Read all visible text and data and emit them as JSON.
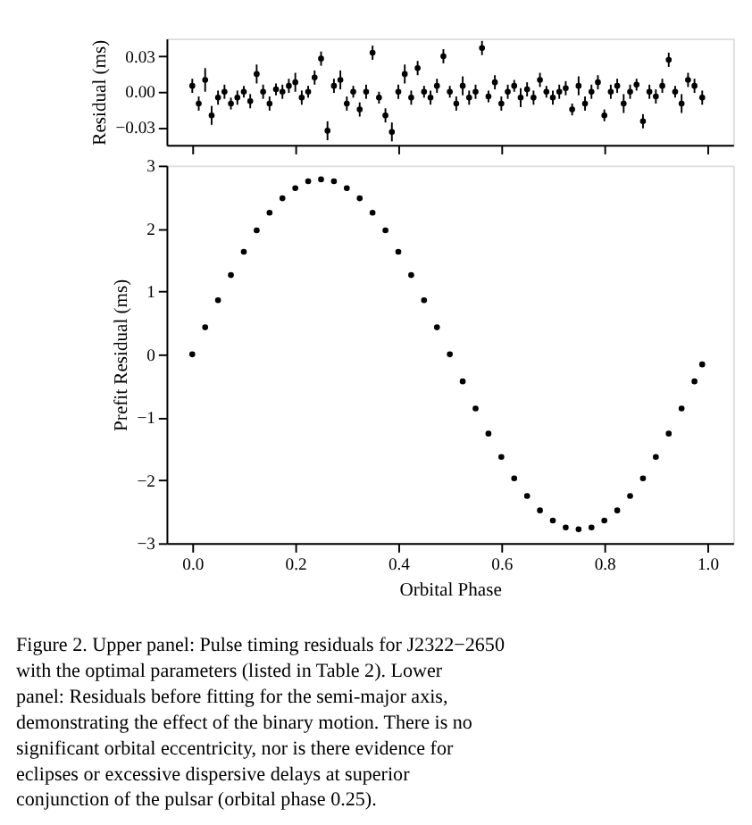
{
  "chart_data": [
    {
      "type": "scatter",
      "ylabel": "Residual (ms)",
      "xlim": [
        -0.05,
        1.05
      ],
      "xticks": [
        {
          "value": 0,
          "label": null
        },
        {
          "value": 0.2,
          "label": null
        },
        {
          "value": 0.4,
          "label": null
        },
        {
          "value": 0.6,
          "label": null
        },
        {
          "value": 0.8,
          "label": null
        },
        {
          "value": 1,
          "label": null
        }
      ],
      "ylim": [
        -0.045,
        0.045
      ],
      "yticks": [
        {
          "value": -0.03,
          "label": "−0.03"
        },
        {
          "value": 0,
          "label": "0.00"
        },
        0.03
      ],
      "tick_labels": "y",
      "grid": false,
      "marker": "circle",
      "series": [
        {
          "color": "#000000",
          "x": [
            0.0,
            0.0125,
            0.025,
            0.0375,
            0.05,
            0.0625,
            0.075,
            0.0875,
            0.1,
            0.1125,
            0.125,
            0.1375,
            0.15,
            0.1625,
            0.175,
            0.1875,
            0.2,
            0.2125,
            0.225,
            0.2375,
            0.25,
            0.2625,
            0.275,
            0.2875,
            0.3,
            0.3125,
            0.325,
            0.3375,
            0.35,
            0.3625,
            0.375,
            0.3875,
            0.4,
            0.4125,
            0.425,
            0.4375,
            0.45,
            0.4625,
            0.475,
            0.4875,
            0.5,
            0.5125,
            0.525,
            0.5375,
            0.55,
            0.5625,
            0.575,
            0.5875,
            0.6,
            0.6125,
            0.625,
            0.6375,
            0.65,
            0.6625,
            0.675,
            0.6875,
            0.7,
            0.7125,
            0.725,
            0.7375,
            0.75,
            0.7625,
            0.775,
            0.7875,
            0.8,
            0.8125,
            0.825,
            0.8375,
            0.85,
            0.8625,
            0.875,
            0.8875,
            0.9,
            0.9125,
            0.925,
            0.9375,
            0.95,
            0.9625,
            0.975,
            0.99
          ],
          "values": [
            0.005,
            -0.01,
            0.01,
            -0.02,
            -0.005,
            0.0,
            -0.01,
            -0.005,
            0.0,
            -0.008,
            0.015,
            0.0,
            -0.01,
            0.002,
            0.0,
            0.005,
            0.008,
            -0.005,
            0.0,
            0.012,
            0.028,
            -0.033,
            0.005,
            0.01,
            -0.01,
            0.0,
            -0.015,
            0.0,
            0.033,
            -0.005,
            -0.02,
            -0.034,
            0.0,
            0.015,
            -0.005,
            0.02,
            0.0,
            -0.005,
            0.005,
            0.03,
            0.0,
            -0.01,
            0.005,
            -0.005,
            0.0,
            0.037,
            -0.004,
            0.008,
            -0.01,
            0.0,
            0.005,
            -0.005,
            0.002,
            -0.005,
            0.01,
            0.0,
            -0.005,
            0.0,
            0.003,
            -0.015,
            0.005,
            -0.01,
            0.0,
            0.008,
            -0.02,
            0.0,
            0.005,
            -0.01,
            0.0,
            0.006,
            -0.025,
            0.0,
            -0.004,
            0.005,
            0.027,
            0.0,
            -0.01,
            0.01,
            0.005,
            -0.005
          ],
          "errors": [
            0.006,
            0.006,
            0.01,
            0.008,
            0.006,
            0.006,
            0.005,
            0.006,
            0.005,
            0.006,
            0.008,
            0.006,
            0.006,
            0.005,
            0.006,
            0.006,
            0.008,
            0.006,
            0.005,
            0.006,
            0.006,
            0.008,
            0.006,
            0.008,
            0.006,
            0.005,
            0.006,
            0.006,
            0.006,
            0.005,
            0.006,
            0.008,
            0.006,
            0.008,
            0.006,
            0.006,
            0.005,
            0.006,
            0.006,
            0.006,
            0.005,
            0.006,
            0.008,
            0.006,
            0.006,
            0.006,
            0.005,
            0.006,
            0.006,
            0.006,
            0.005,
            0.008,
            0.006,
            0.006,
            0.006,
            0.005,
            0.006,
            0.006,
            0.006,
            0.005,
            0.008,
            0.006,
            0.006,
            0.006,
            0.005,
            0.006,
            0.006,
            0.008,
            0.006,
            0.005,
            0.006,
            0.006,
            0.006,
            0.006,
            0.006,
            0.005,
            0.008,
            0.006,
            0.006,
            0.006
          ]
        }
      ]
    },
    {
      "type": "scatter",
      "xlabel": "Orbital Phase",
      "ylabel": "Prefit Residual (ms)",
      "xlim": [
        -0.05,
        1.05
      ],
      "xticks": [
        {
          "value": 0,
          "label": "0.0"
        },
        0.2,
        0.4,
        0.6,
        0.8,
        {
          "value": 1,
          "label": "1.0"
        }
      ],
      "ylim": [
        -3,
        3
      ],
      "yticks": [
        -3,
        -2,
        -1,
        0,
        1,
        2,
        3
      ],
      "grid": false,
      "marker": "circle",
      "annotations": [
        "Figure 2. Upper panel: Pulse timing residuals for J2322−2650 with the optimal parameters (listed in Table 2). Lower panel: Residuals before fitting for the semi-major axis, demonstrating the effect of the binary motion. There is no significant orbital eccentricity, nor is there evidence for eclipses or excessive dispersive delays at superior conjunction of the pulsar (orbital phase 0.25)."
      ],
      "series": [
        {
          "color": "#000000",
          "x": [
            0.0,
            0.025,
            0.05,
            0.075,
            0.1,
            0.125,
            0.15,
            0.175,
            0.2,
            0.225,
            0.25,
            0.275,
            0.3,
            0.325,
            0.35,
            0.375,
            0.4,
            0.425,
            0.45,
            0.475,
            0.5,
            0.525,
            0.55,
            0.575,
            0.6,
            0.625,
            0.65,
            0.675,
            0.7,
            0.725,
            0.75,
            0.775,
            0.8,
            0.825,
            0.85,
            0.875,
            0.9,
            0.925,
            0.95,
            0.975,
            0.99
          ],
          "values": [
            0.0,
            0.43,
            0.86,
            1.26,
            1.63,
            1.97,
            2.25,
            2.48,
            2.64,
            2.75,
            2.78,
            2.75,
            2.64,
            2.48,
            2.25,
            1.97,
            1.63,
            1.26,
            0.86,
            0.43,
            0.0,
            -0.43,
            -0.86,
            -1.26,
            -1.63,
            -1.97,
            -2.25,
            -2.48,
            -2.64,
            -2.75,
            -2.78,
            -2.75,
            -2.64,
            -2.48,
            -2.25,
            -1.97,
            -1.63,
            -1.26,
            -0.86,
            -0.43,
            -0.16
          ]
        }
      ]
    }
  ]
}
